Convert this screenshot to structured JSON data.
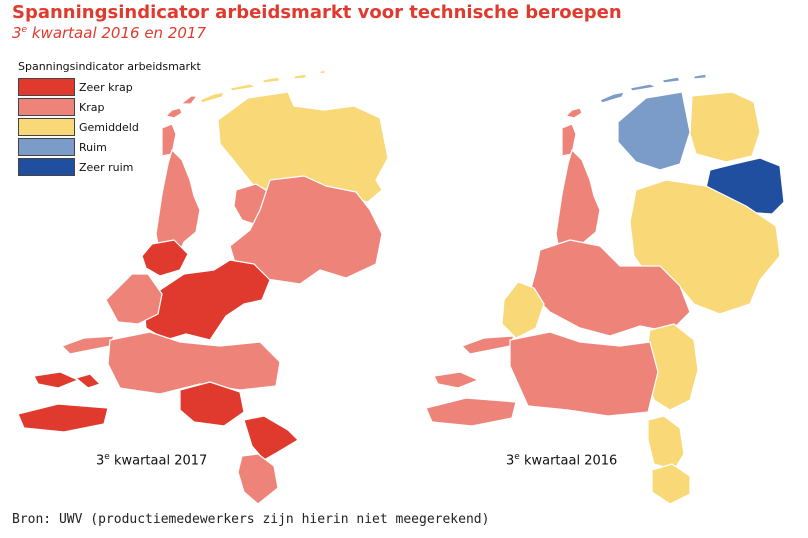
{
  "title": "Spanningsindicator arbeidsmarkt voor technische beroepen",
  "subtitle": {
    "super": "e",
    "prefix": "3",
    "rest": " kwartaal 2016 en 2017"
  },
  "legend": {
    "title": "Spanningsindicator arbeidsmarkt",
    "items": [
      {
        "label": "Zeer krap",
        "color": "#e03a2f"
      },
      {
        "label": "Krap",
        "color": "#ee8479"
      },
      {
        "label": "Gemiddeld",
        "color": "#f9d878"
      },
      {
        "label": "Ruim",
        "color": "#7b9bc8"
      },
      {
        "label": "Zeer ruim",
        "color": "#1f4f9e"
      }
    ]
  },
  "maps": [
    {
      "label_prefix": "3",
      "label_super": "e",
      "label_rest": " kwartaal 2017"
    },
    {
      "label_prefix": "3",
      "label_super": "e",
      "label_rest": " kwartaal 2016"
    }
  ],
  "source": "Bron: UWV (productiemedewerkers zijn hierin niet meegerekend)"
}
